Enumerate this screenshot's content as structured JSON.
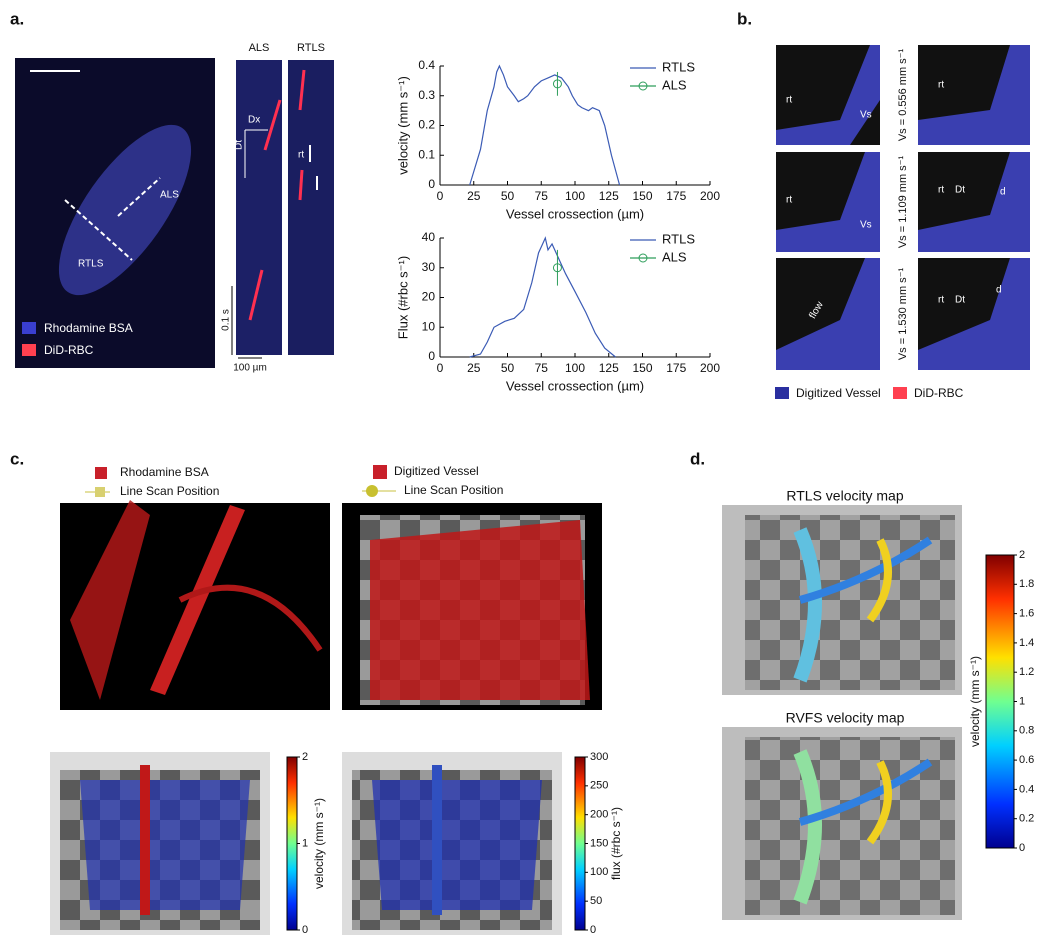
{
  "panel_labels": [
    "a.",
    "b.",
    "c.",
    "d."
  ],
  "panel_a": {
    "image_labels": [
      "ALS",
      "RTLS"
    ],
    "legend": [
      "Rhodamine BSA",
      "DiD-RBC"
    ],
    "kymograph_titles": [
      "ALS",
      "RTLS"
    ],
    "kymograph_labels": [
      "Dx",
      "Dt",
      "rt"
    ],
    "scale_labels": [
      "0.1 s",
      "100 µm"
    ]
  },
  "chart_data": [
    {
      "type": "line",
      "xlabel": "Vessel crossection (µm)",
      "ylabel": "velocity (mm s⁻¹)",
      "xlim": [
        0,
        200
      ],
      "xticks": [
        0,
        25,
        50,
        75,
        100,
        125,
        150,
        175,
        200
      ],
      "ylim": [
        0,
        0.4
      ],
      "yticks": [
        0,
        0.1,
        0.2,
        0.3,
        0.4
      ],
      "series": [
        {
          "name": "RTLS",
          "color": "#3b5bb5",
          "x": [
            22,
            30,
            35,
            40,
            42,
            44,
            47,
            50,
            55,
            58,
            62,
            65,
            70,
            75,
            80,
            85,
            90,
            95,
            98,
            102,
            105,
            110,
            113,
            118,
            122,
            127,
            133
          ],
          "values": [
            0,
            0.12,
            0.25,
            0.33,
            0.38,
            0.4,
            0.37,
            0.33,
            0.3,
            0.28,
            0.29,
            0.3,
            0.33,
            0.35,
            0.36,
            0.37,
            0.36,
            0.33,
            0.3,
            0.27,
            0.26,
            0.25,
            0.26,
            0.25,
            0.2,
            0.1,
            0
          ]
        },
        {
          "name": "ALS",
          "color": "#2e9e5b",
          "x": [
            87
          ],
          "values": [
            0.34
          ],
          "errors": [
            0.04
          ]
        }
      ]
    },
    {
      "type": "line",
      "xlabel": "Vessel crossection (µm)",
      "ylabel": "Flux (#rbc s⁻¹)",
      "xlim": [
        0,
        200
      ],
      "xticks": [
        0,
        25,
        50,
        75,
        100,
        125,
        150,
        175,
        200
      ],
      "ylim": [
        0,
        40
      ],
      "yticks": [
        0,
        10,
        20,
        30,
        40
      ],
      "series": [
        {
          "name": "RTLS",
          "color": "#3b5bb5",
          "x": [
            22,
            30,
            35,
            40,
            48,
            55,
            62,
            68,
            73,
            76,
            78,
            80,
            83,
            88,
            93,
            100,
            108,
            115,
            122,
            130
          ],
          "values": [
            0,
            1,
            5,
            10,
            12,
            13,
            16,
            25,
            35,
            38,
            40,
            36,
            38,
            33,
            28,
            22,
            15,
            8,
            3,
            0
          ]
        },
        {
          "name": "ALS",
          "color": "#2e9e5b",
          "x": [
            87
          ],
          "values": [
            30
          ],
          "errors": [
            6
          ]
        }
      ]
    }
  ],
  "panel_b": {
    "labels": [
      "rt",
      "Vs",
      "Dt",
      "d",
      "flow"
    ],
    "speeds": [
      "Vs = 0.556 mm s⁻¹",
      "Vs = 1.109 mm s⁻¹",
      "Vs = 1.530 mm s⁻¹"
    ],
    "legend": [
      "Digitized Vessel",
      "DiD-RBC"
    ]
  },
  "panel_c": {
    "legend_left": [
      "Rhodamine BSA",
      "Line Scan Position"
    ],
    "legend_right": [
      "Digitized Vessel",
      "Line Scan Position"
    ],
    "colorbars": [
      {
        "label": "velocity (mm s⁻¹)",
        "lim": [
          0,
          2
        ],
        "ticks": [
          0,
          1,
          2
        ]
      },
      {
        "label": "flux (#rbc s⁻¹)",
        "lim": [
          0,
          300
        ],
        "ticks": [
          0,
          50,
          100,
          150,
          200,
          250,
          300
        ]
      }
    ]
  },
  "panel_d": {
    "titles": [
      "RTLS velocity map",
      "RVFS  velocity map"
    ],
    "colorbar": {
      "label": "velocity (mm s⁻¹)",
      "lim": [
        0,
        2
      ],
      "ticks": [
        0,
        0.2,
        0.4,
        0.6,
        0.8,
        1,
        1.2,
        1.4,
        1.6,
        1.8,
        2
      ]
    }
  }
}
